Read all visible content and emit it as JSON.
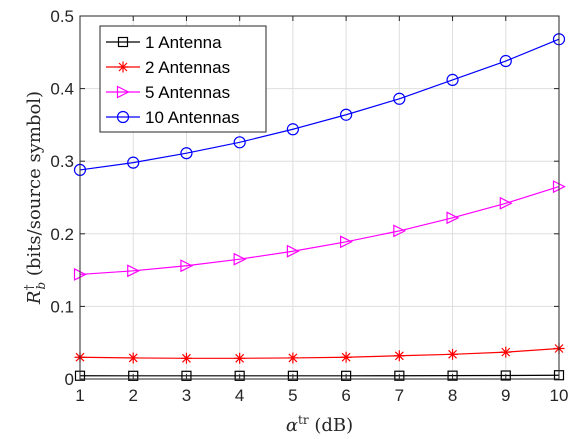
{
  "chart_data": {
    "type": "line",
    "x": [
      1,
      2,
      3,
      4,
      5,
      6,
      7,
      8,
      9,
      10
    ],
    "xlabel": "αᵗʳ (dB)",
    "ylabel": "R†b (bits/source symbol)",
    "xlim": [
      1,
      10
    ],
    "ylim": [
      0,
      0.5
    ],
    "xticks": [
      "1",
      "2",
      "3",
      "4",
      "5",
      "6",
      "7",
      "8",
      "9",
      "10"
    ],
    "yticks": [
      "0",
      "0.1",
      "0.2",
      "0.3",
      "0.4",
      "0.5"
    ],
    "grid": true,
    "legend_position": "top-left",
    "series": [
      {
        "name": "1 Antenna",
        "color": "#000000",
        "marker": "square",
        "values": [
          0.0045,
          0.0044,
          0.0044,
          0.0044,
          0.0044,
          0.0044,
          0.0045,
          0.0046,
          0.0048,
          0.0052
        ]
      },
      {
        "name": "2 Antennas",
        "color": "#ff0000",
        "marker": "asterisk",
        "values": [
          0.03,
          0.029,
          0.0285,
          0.0285,
          0.029,
          0.03,
          0.032,
          0.034,
          0.037,
          0.042
        ]
      },
      {
        "name": "5 Antennas",
        "color": "#ff00ff",
        "marker": "triangle-right",
        "values": [
          0.144,
          0.149,
          0.156,
          0.165,
          0.176,
          0.189,
          0.204,
          0.222,
          0.242,
          0.265
        ]
      },
      {
        "name": "10 Antennas",
        "color": "#0000ff",
        "marker": "circle",
        "values": [
          0.288,
          0.298,
          0.311,
          0.326,
          0.344,
          0.364,
          0.386,
          0.412,
          0.438,
          0.468
        ]
      }
    ]
  }
}
